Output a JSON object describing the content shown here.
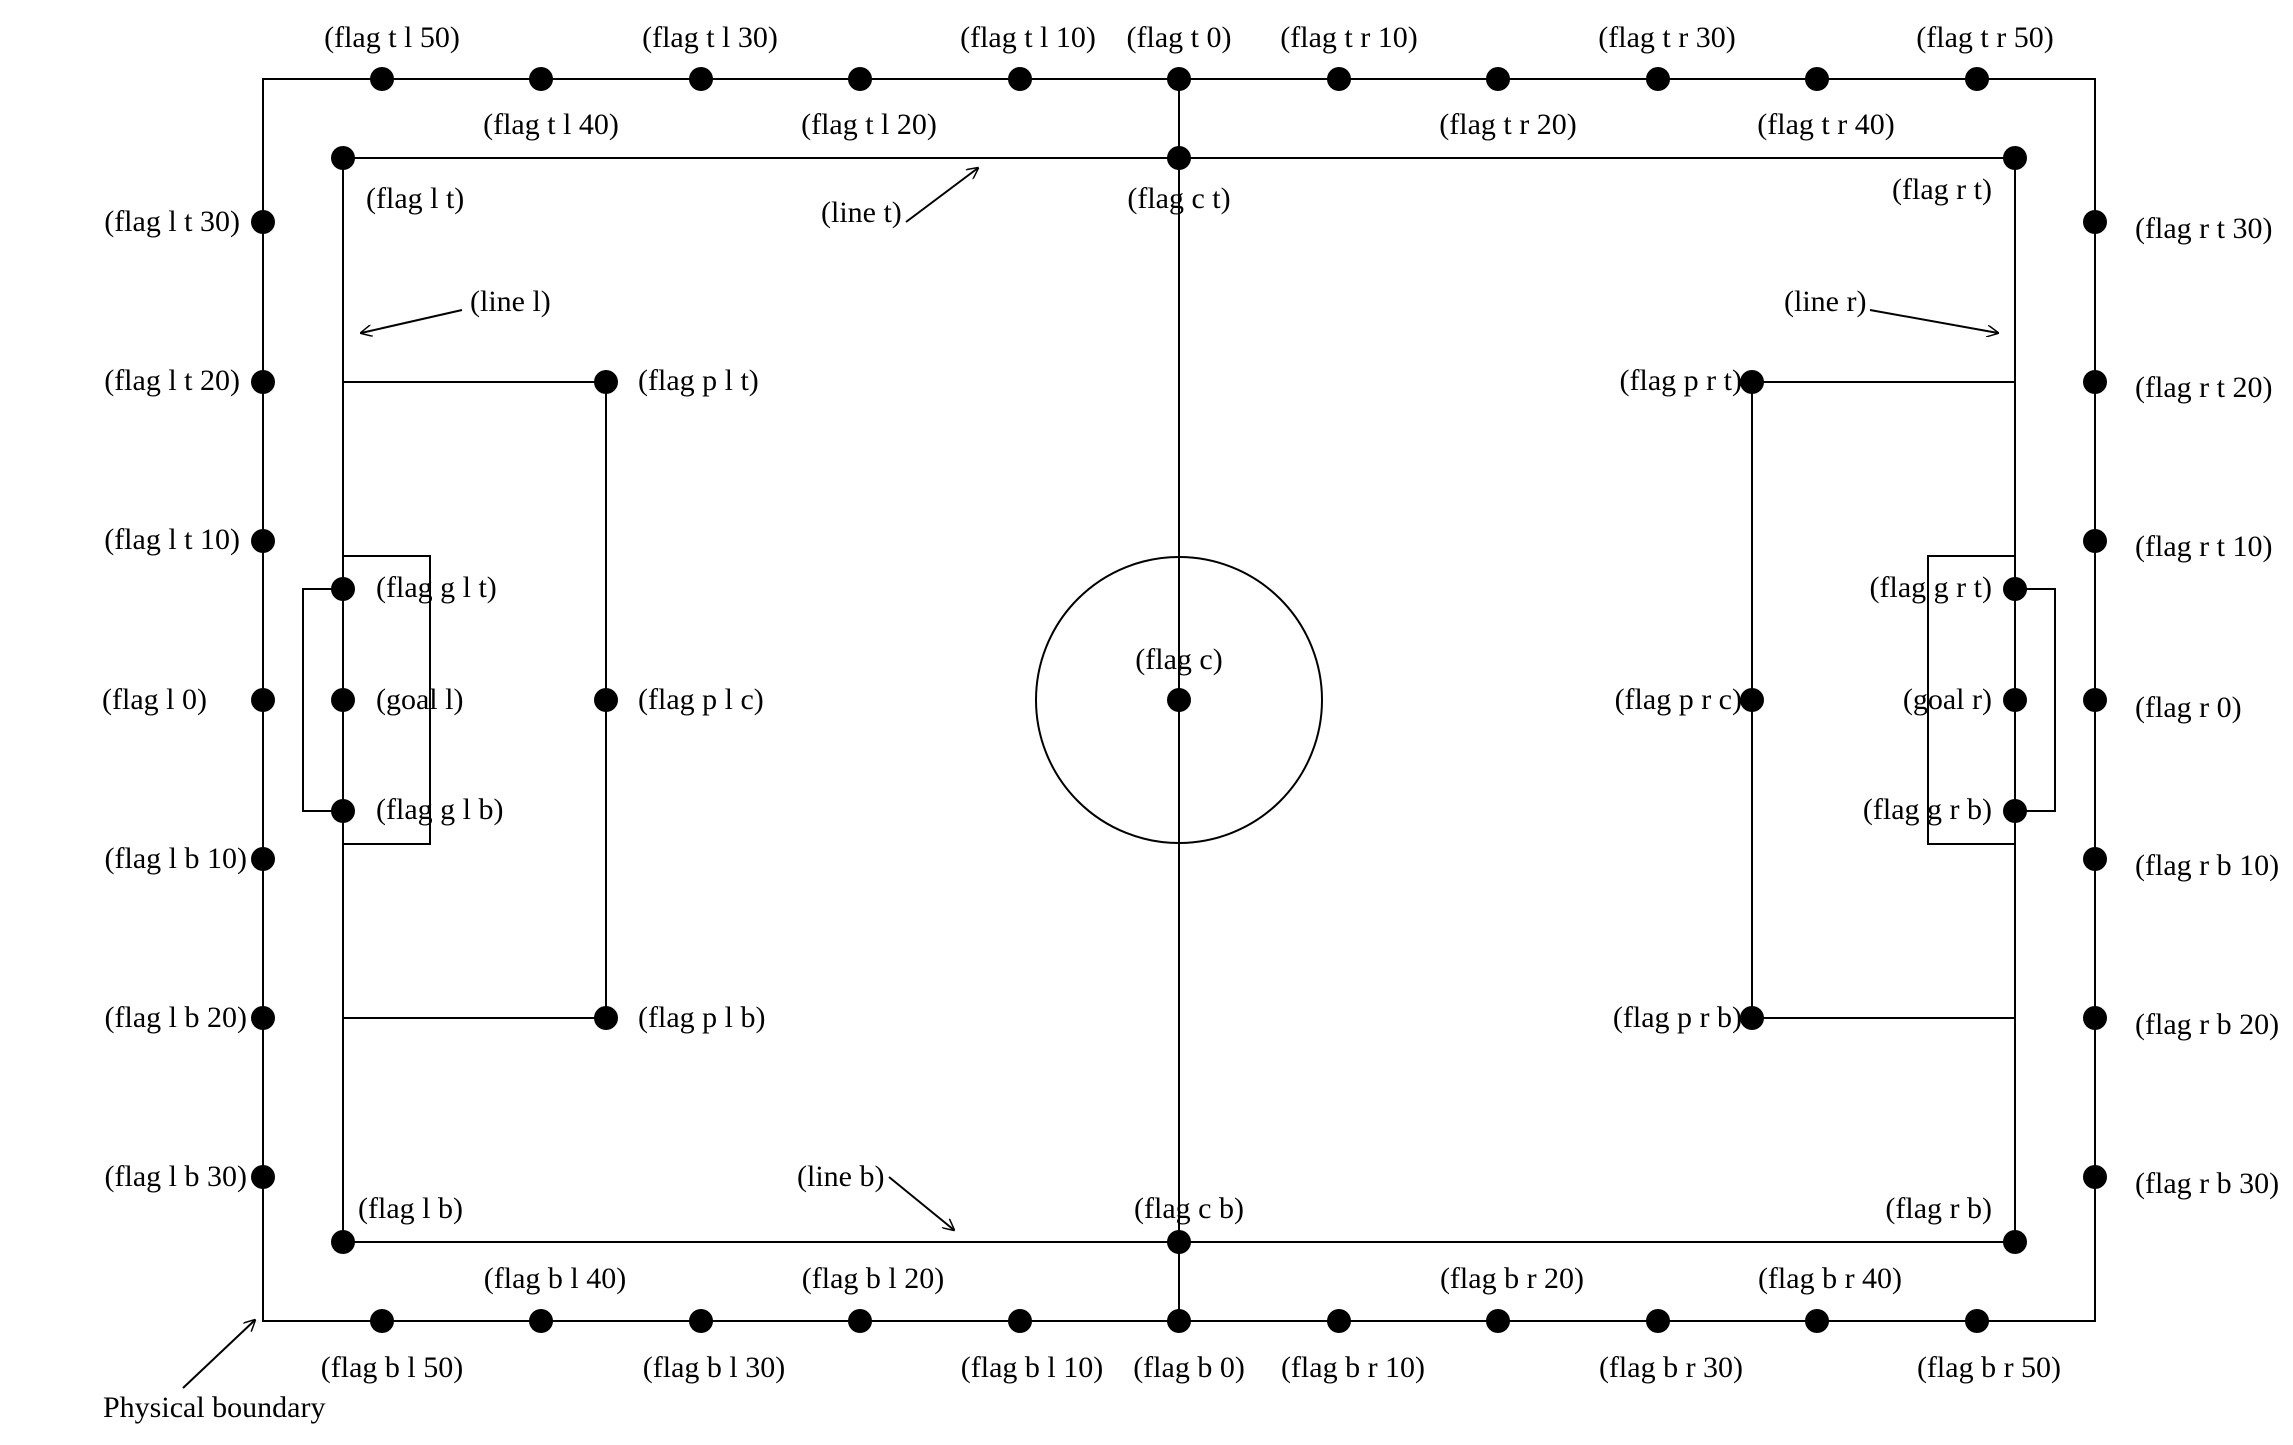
{
  "diagram": {
    "flags_top_outer": [
      "(flag t l 50)",
      "(flag t l 40)",
      "(flag t l 30)",
      "(flag t l 20)",
      "(flag t l 10)",
      "(flag t 0)",
      "(flag t r 10)",
      "(flag t r 20)",
      "(flag t r 30)",
      "(flag t r 40)",
      "(flag t r 50)"
    ],
    "flags_bottom_outer": [
      "(flag b l 50)",
      "(flag b l 40)",
      "(flag b l 30)",
      "(flag b l 20)",
      "(flag b l 10)",
      "(flag b 0)",
      "(flag b r 10)",
      "(flag b r 20)",
      "(flag b r 30)",
      "(flag b r 40)",
      "(flag b r 50)"
    ],
    "flags_left_outer": [
      "(flag l t 30)",
      "(flag l t 20)",
      "(flag l t 10)",
      "(flag l 0)",
      "(flag l b 10)",
      "(flag l b 20)",
      "(flag l b 30)"
    ],
    "flags_right_outer": [
      "(flag r t 30)",
      "(flag r t 20)",
      "(flag r t 10)",
      "(flag r 0)",
      "(flag r b 10)",
      "(flag r b 20)",
      "(flag r b 30)"
    ],
    "field_corners": {
      "left_top": "(flag l t)",
      "center_top": "(flag c t)",
      "right_top": "(flag r t)",
      "left_bottom": "(flag l b)",
      "center_bottom": "(flag c b)",
      "right_bottom": "(flag r b)"
    },
    "center": "(flag c)",
    "penalty_left": {
      "top": "(flag p l t)",
      "center": "(flag p l c)",
      "bottom": "(flag p l b)"
    },
    "penalty_right": {
      "top": "(flag p r t)",
      "center": "(flag p r c)",
      "bottom": "(flag p r b)"
    },
    "goal_left": {
      "top": "(flag g l t)",
      "center": "(goal l)",
      "bottom": "(flag g l b)"
    },
    "goal_right": {
      "top": "(flag g r t)",
      "center": "(goal r)",
      "bottom": "(flag g r b)"
    },
    "lines": {
      "top": "(line t)",
      "bottom": "(line b)",
      "left": "(line l)",
      "right": "(line r)"
    },
    "boundary": "Physical boundary"
  }
}
